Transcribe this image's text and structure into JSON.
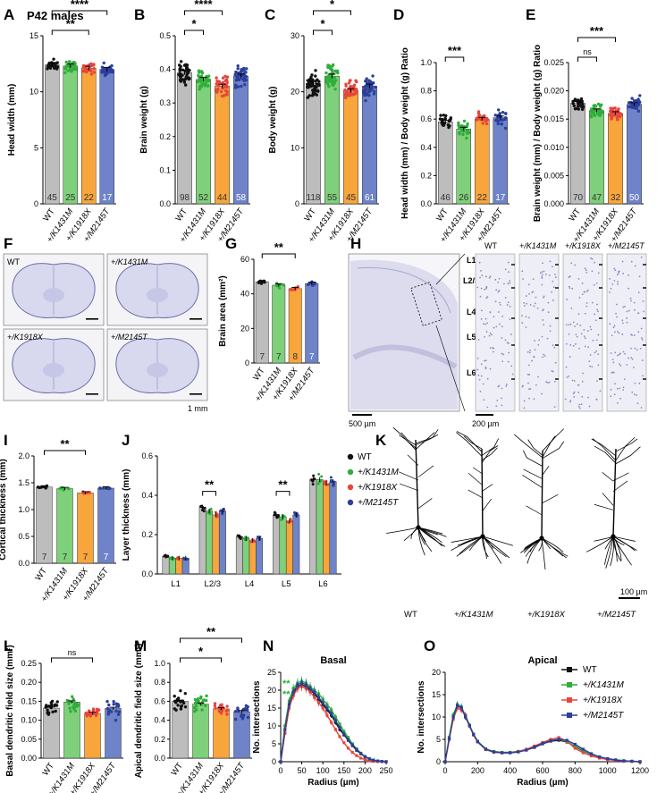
{
  "figure": {
    "subtitle": "P42 males",
    "colors": {
      "WT": "#bdbdbd",
      "K1431M": "#7fd07a",
      "K1918X": "#f8a53c",
      "M2145T": "#6f83c8",
      "dotWT": "#111111",
      "dotK1431M": "#2fae3a",
      "dotK1918X": "#e8453c",
      "dotM2145T": "#2b3f9c"
    },
    "genotypes": [
      "WT",
      "+/K1431M",
      "+/K1918X",
      "+/M2145T"
    ],
    "scale_bars": {
      "F": "1 mm",
      "H_overview": "500 µm",
      "H_columns": "200 µm",
      "K": "100 µm"
    },
    "layer_labels": [
      "L1",
      "L2/3",
      "L4",
      "L5",
      "L6"
    ],
    "panel_letters": [
      "A",
      "B",
      "C",
      "D",
      "E",
      "F",
      "G",
      "H",
      "I",
      "J",
      "K",
      "L",
      "M",
      "N",
      "O"
    ]
  },
  "chart_data": [
    {
      "id": "A",
      "type": "bar",
      "categories": [
        "WT",
        "+/K1431M",
        "+/K1918X",
        "+/M2145T"
      ],
      "values": [
        12.4,
        12.3,
        12.1,
        12.0
      ],
      "n": [
        "45",
        "25",
        "22",
        "17"
      ],
      "ylabel": "Head width (mm)",
      "ylim": [
        0,
        15
      ],
      "yticks": [
        "0",
        "5",
        "10",
        "15"
      ],
      "sig": [
        {
          "from": 0,
          "to": 2,
          "label": "**"
        },
        {
          "from": 0,
          "to": 3,
          "label": "****"
        }
      ]
    },
    {
      "id": "B",
      "type": "bar",
      "categories": [
        "WT",
        "+/K1431M",
        "+/K1918X",
        "+/M2145T"
      ],
      "values": [
        0.39,
        0.37,
        0.35,
        0.38
      ],
      "n": [
        "98",
        "52",
        "44",
        "58"
      ],
      "ylabel": "Brain weight (g)",
      "ylim": [
        0,
        0.5
      ],
      "yticks": [
        "0.0",
        "0.1",
        "0.2",
        "0.3",
        "0.4",
        "0.5"
      ],
      "sig": [
        {
          "from": 0,
          "to": 1,
          "label": "*"
        },
        {
          "from": 0,
          "to": 2,
          "label": "****"
        },
        {
          "from": 0,
          "to": 3,
          "label": "**"
        }
      ]
    },
    {
      "id": "C",
      "type": "bar",
      "categories": [
        "WT",
        "+/K1431M",
        "+/K1918X",
        "+/M2145T"
      ],
      "values": [
        21.5,
        22.8,
        20.2,
        21.0
      ],
      "n": [
        "118",
        "55",
        "45",
        "61"
      ],
      "ylabel": "Body weight (g)",
      "ylim": [
        0,
        30
      ],
      "yticks": [
        "0",
        "10",
        "20",
        "30"
      ],
      "sig": [
        {
          "from": 0,
          "to": 1,
          "label": "*"
        },
        {
          "from": 0,
          "to": 2,
          "label": "*"
        }
      ]
    },
    {
      "id": "D",
      "type": "bar",
      "categories": [
        "WT",
        "+/K1431M",
        "+/K1918X",
        "+/M2145T"
      ],
      "values": [
        0.58,
        0.53,
        0.6,
        0.61
      ],
      "n": [
        "46",
        "26",
        "22",
        "17"
      ],
      "ylabel": "Head width (mm) / Body weight (g) Ratio",
      "ylim": [
        0,
        1.0
      ],
      "yticks": [
        "0.0",
        "0.2",
        "0.4",
        "0.6",
        "0.8",
        "1.0"
      ],
      "sig": [
        {
          "from": 0,
          "to": 1,
          "label": "***"
        }
      ]
    },
    {
      "id": "E",
      "type": "bar",
      "categories": [
        "WT",
        "+/K1431M",
        "+/K1918X",
        "+/M2145T"
      ],
      "values": [
        0.0178,
        0.0165,
        0.016,
        0.0176
      ],
      "n": [
        "70",
        "47",
        "32",
        "50"
      ],
      "ylabel": "Brain weight (mm) / Body weight (g) Ratio",
      "ylim": [
        0,
        0.025
      ],
      "yticks": [
        "0.000",
        "0.005",
        "0.010",
        "0.015",
        "0.020",
        "0.025"
      ],
      "sig": [
        {
          "from": 0,
          "to": 1,
          "label": "ns"
        },
        {
          "from": 0,
          "to": 2,
          "label": "***"
        }
      ]
    },
    {
      "id": "G",
      "type": "bar",
      "categories": [
        "WT",
        "+/K1431M",
        "+/K1918X",
        "+/M2145T"
      ],
      "values": [
        47,
        45,
        43,
        46
      ],
      "n": [
        "7",
        "7",
        "8",
        "7"
      ],
      "ylabel": "Brain area (mm²)",
      "ylim": [
        0,
        60
      ],
      "yticks": [
        "0",
        "20",
        "40",
        "60"
      ],
      "sig": [
        {
          "from": 0,
          "to": 2,
          "label": "**"
        }
      ]
    },
    {
      "id": "I",
      "type": "bar",
      "categories": [
        "WT",
        "+/K1431M",
        "+/K1918X",
        "+/M2145T"
      ],
      "values": [
        1.42,
        1.39,
        1.31,
        1.4
      ],
      "n": [
        "7",
        "7",
        "7",
        "7"
      ],
      "ylabel": "Cortical thickness (mm)",
      "ylim": [
        0,
        2.0
      ],
      "yticks": [
        "0.0",
        "0.5",
        "1.0",
        "1.5",
        "2.0"
      ],
      "sig": [
        {
          "from": 0,
          "to": 2,
          "label": "**"
        }
      ]
    },
    {
      "id": "J",
      "type": "bar",
      "categories": [
        "L1",
        "L2/3",
        "L4",
        "L5",
        "L6"
      ],
      "series": [
        {
          "name": "WT",
          "values": [
            0.09,
            0.34,
            0.19,
            0.3,
            0.48
          ]
        },
        {
          "name": "+/K1431M",
          "values": [
            0.08,
            0.32,
            0.18,
            0.29,
            0.48
          ]
        },
        {
          "name": "+/K1918X",
          "values": [
            0.08,
            0.3,
            0.17,
            0.27,
            0.46
          ]
        },
        {
          "name": "+/M2145T",
          "values": [
            0.08,
            0.32,
            0.18,
            0.3,
            0.47
          ]
        }
      ],
      "ylabel": "Layer thickness (mm)",
      "ylim": [
        0,
        0.6
      ],
      "yticks": [
        "0.0",
        "0.2",
        "0.4",
        "0.6"
      ],
      "sig": [
        {
          "group": 1,
          "label": "**"
        },
        {
          "group": 3,
          "label": "**"
        }
      ]
    },
    {
      "id": "L",
      "type": "bar",
      "categories": [
        "WT",
        "+/K1431M",
        "+/K1918X",
        "+/M2145T"
      ],
      "values": [
        0.132,
        0.148,
        0.118,
        0.131
      ],
      "n": [
        "",
        "",
        "",
        ""
      ],
      "ylabel": "Basal dendritic field size (mm²)",
      "ylim": [
        0,
        0.25
      ],
      "yticks": [
        "0.00",
        "0.05",
        "0.10",
        "0.15",
        "0.20",
        "0.25"
      ],
      "sig": [
        {
          "from": 0,
          "to": 2,
          "label": "ns"
        }
      ]
    },
    {
      "id": "M",
      "type": "bar",
      "categories": [
        "WT",
        "+/K1431M",
        "+/K1918X",
        "+/M2145T"
      ],
      "values": [
        0.6,
        0.57,
        0.52,
        0.49
      ],
      "n": [
        "",
        "",
        "",
        ""
      ],
      "ylabel": "Apical dendritic field size (mm²)",
      "ylim": [
        0,
        1.0
      ],
      "yticks": [
        "0.0",
        "0.2",
        "0.4",
        "0.6",
        "0.8",
        "1.0"
      ],
      "sig": [
        {
          "from": 0,
          "to": 2,
          "label": "*"
        },
        {
          "from": 0,
          "to": 3,
          "label": "**"
        }
      ]
    },
    {
      "id": "N",
      "type": "line",
      "title": "Basal",
      "xlabel": "Radius (µm)",
      "ylabel": "No. intersections",
      "xlim": [
        0,
        250
      ],
      "ylim": [
        0,
        25
      ],
      "xticks": [
        "0",
        "50",
        "100",
        "150",
        "200",
        "250"
      ],
      "yticks": [
        "0",
        "5",
        "10",
        "15",
        "20",
        "25"
      ],
      "x": [
        0,
        10,
        20,
        30,
        40,
        50,
        60,
        70,
        80,
        90,
        100,
        110,
        120,
        130,
        140,
        150,
        160,
        170,
        180,
        190,
        200,
        210,
        220,
        230,
        240,
        250
      ],
      "series": [
        {
          "name": "WT",
          "values": [
            0,
            8,
            15,
            19,
            21,
            21.5,
            21,
            20,
            19,
            17.5,
            16,
            14.5,
            13,
            11,
            9,
            7.5,
            6,
            4.5,
            3.2,
            2.2,
            1.4,
            0.8,
            0.4,
            0.2,
            0.1,
            0
          ]
        },
        {
          "name": "+/K1431M",
          "values": [
            0,
            10,
            17,
            20.5,
            22,
            22.5,
            22,
            21,
            20,
            19,
            17.5,
            16,
            14.5,
            12.5,
            10.5,
            8.5,
            6.8,
            5,
            3.6,
            2.4,
            1.5,
            0.9,
            0.5,
            0.2,
            0.1,
            0
          ]
        },
        {
          "name": "+/K1918X",
          "values": [
            0,
            8,
            15,
            18.5,
            20.5,
            21,
            20.5,
            19.5,
            18,
            16.5,
            15,
            13,
            11,
            9,
            7,
            5.3,
            3.8,
            2.6,
            1.7,
            1.0,
            0.6,
            0.3,
            0.1,
            0.05,
            0,
            0
          ]
        },
        {
          "name": "+/M2145T",
          "values": [
            0,
            9,
            16,
            19.5,
            21.5,
            22,
            21.5,
            20.5,
            19.5,
            18,
            16.5,
            15,
            13.5,
            11.5,
            9.5,
            7.8,
            6.2,
            4.7,
            3.4,
            2.3,
            1.4,
            0.8,
            0.4,
            0.2,
            0.1,
            0
          ]
        }
      ]
    },
    {
      "id": "O",
      "type": "line",
      "title": "Apical",
      "xlabel": "Radius (µm)",
      "ylabel": "No. intersections",
      "xlim": [
        0,
        1200
      ],
      "ylim": [
        0,
        20
      ],
      "xticks": [
        "0",
        "200",
        "400",
        "600",
        "800",
        "1000",
        "1200"
      ],
      "yticks": [
        "0",
        "5",
        "10",
        "15",
        "20"
      ],
      "x": [
        0,
        25,
        50,
        75,
        100,
        125,
        150,
        175,
        200,
        250,
        300,
        350,
        400,
        450,
        500,
        550,
        600,
        650,
        700,
        750,
        800,
        850,
        900,
        950,
        1000,
        1050,
        1100,
        1150,
        1200
      ],
      "series": [
        {
          "name": "WT",
          "values": [
            0,
            5,
            10,
            12.5,
            12,
            10,
            8,
            6,
            4.5,
            2.8,
            2.2,
            2.0,
            2.0,
            2.2,
            2.6,
            3.2,
            4.0,
            4.6,
            4.8,
            4.4,
            3.4,
            2.4,
            1.6,
            1.0,
            0.6,
            0.4,
            0.2,
            0.1,
            0
          ]
        },
        {
          "name": "+/K1431M",
          "values": [
            0,
            5.5,
            10.5,
            12.8,
            12.3,
            10.3,
            8.2,
            6.2,
            4.6,
            2.9,
            2.3,
            2.1,
            2.1,
            2.3,
            2.7,
            3.4,
            4.2,
            4.8,
            5.0,
            4.5,
            3.5,
            2.5,
            1.6,
            1.0,
            0.6,
            0.4,
            0.2,
            0.1,
            0
          ]
        },
        {
          "name": "+/K1918X",
          "values": [
            0,
            5,
            9.5,
            12,
            11.5,
            10.5,
            8,
            6,
            4.4,
            2.7,
            2.1,
            2.0,
            2.0,
            2.3,
            2.8,
            3.5,
            4.3,
            5.0,
            5.4,
            4.6,
            3.0,
            2.0,
            1.3,
            0.8,
            0.5,
            0.3,
            0.1,
            0.05,
            0
          ]
        },
        {
          "name": "+/M2145T",
          "values": [
            0,
            5.2,
            10,
            12.6,
            12.1,
            10.1,
            8.1,
            6.1,
            4.5,
            2.8,
            2.2,
            2.0,
            2.0,
            2.2,
            2.6,
            3.3,
            4.1,
            4.7,
            5.0,
            4.8,
            3.9,
            2.8,
            1.8,
            1.1,
            0.7,
            0.4,
            0.2,
            0.1,
            0
          ]
        }
      ]
    }
  ]
}
